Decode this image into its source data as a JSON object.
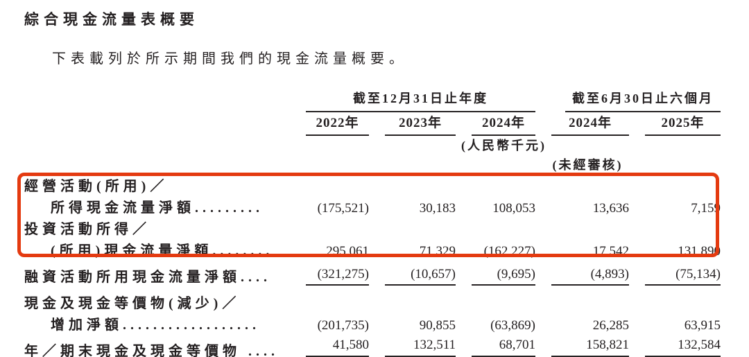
{
  "page": {
    "title": "綜合現金流量表概要",
    "intro": "下表載列於所示期間我們的現金流量概要。"
  },
  "table": {
    "col_groups": [
      {
        "label": "截至12月31日止年度",
        "span": 3
      },
      {
        "label": "截至6月30日止六個月",
        "span": 2
      }
    ],
    "year_headers": [
      "2022年",
      "2023年",
      "2024年",
      "2024年",
      "2025年"
    ],
    "unit_note": "(人民幣千元)",
    "unaudited_note": "(未經審核)",
    "rows": [
      {
        "label_lines": [
          "經營活動(所用)／",
          "所得現金流量淨額........."
        ],
        "values": [
          "(175,521)",
          "30,183",
          "108,053",
          "13,636",
          "7,159"
        ]
      },
      {
        "label_lines": [
          "投資活動所得／",
          "(所用)現金流量淨額........"
        ],
        "values": [
          "295,061",
          "71,329",
          "(162,227)",
          "17,542",
          "131,890"
        ]
      },
      {
        "label_lines": [
          "融資活動所用現金流量淨額...."
        ],
        "values": [
          "(321,275)",
          "(10,657)",
          "(9,695)",
          "(4,893)",
          "(75,134)"
        ],
        "rule": "single"
      },
      {
        "label_lines": [
          "現金及現金等價物(減少)／",
          "增加淨額.................."
        ],
        "values": [
          "(201,735)",
          "90,855",
          "(63,869)",
          "26,285",
          "63,915"
        ]
      },
      {
        "label_lines": [
          "年／期末現金及現金等價物 ...."
        ],
        "values": [
          "41,580",
          "132,511",
          "68,701",
          "158,821",
          "132,584"
        ],
        "rule": "double"
      }
    ],
    "highlight_color": "#e43a10"
  }
}
